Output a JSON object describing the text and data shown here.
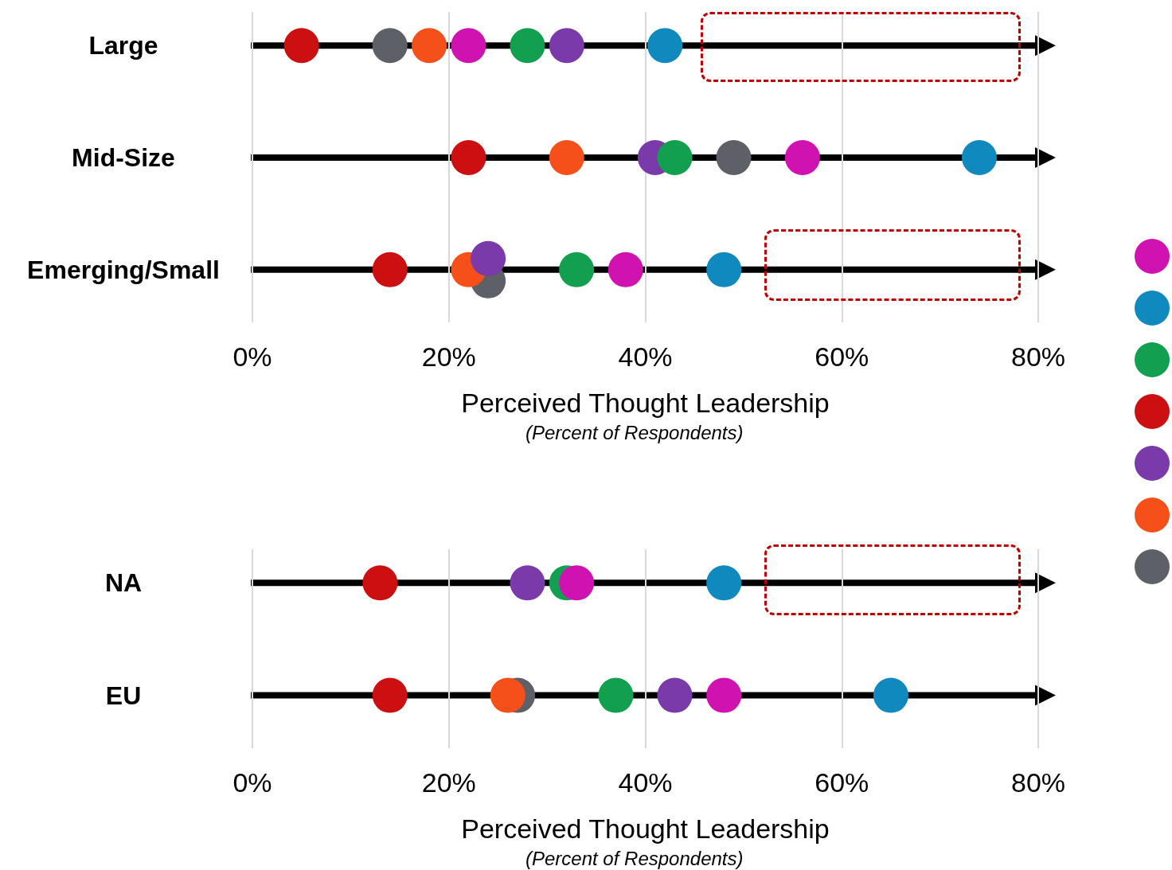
{
  "chart_data": [
    {
      "type": "scatter",
      "categories": [
        "Large",
        "Mid-Size",
        "Emerging/Small"
      ],
      "xlabel": "Perceived Thought Leadership",
      "annotations": [
        "(Percent of Respondents)"
      ],
      "orientation": "horizontal",
      "xlim": [
        0,
        80
      ],
      "xticks": [
        {
          "value": 0,
          "label": "0%"
        },
        {
          "value": 20,
          "label": "20%"
        },
        {
          "value": 40,
          "label": "40%"
        },
        {
          "value": 60,
          "label": "60%"
        },
        {
          "value": 80,
          "label": "80%"
        }
      ],
      "grid": true,
      "marker": "circle",
      "series": [
        {
          "color": "#d012b0",
          "values": [
            22,
            56,
            38
          ]
        },
        {
          "color": "#1089bf",
          "values": [
            42,
            74,
            48
          ]
        },
        {
          "color": "#12a050",
          "values": [
            28,
            43,
            33
          ]
        },
        {
          "color": "#cc0f10",
          "values": [
            5,
            22,
            14
          ]
        },
        {
          "color": "#7a3aaa",
          "values": [
            32,
            41,
            24
          ]
        },
        {
          "color": "#f5501a",
          "values": [
            18,
            32,
            22
          ]
        },
        {
          "color": "#5d6066",
          "values": [
            14,
            49,
            24
          ]
        }
      ]
    },
    {
      "type": "scatter",
      "categories": [
        "NA",
        "EU"
      ],
      "xlabel": "Perceived Thought Leadership",
      "annotations": [
        "(Percent of Respondents)"
      ],
      "orientation": "horizontal",
      "xlim": [
        0,
        80
      ],
      "xticks": [
        {
          "value": 0,
          "label": "0%"
        },
        {
          "value": 20,
          "label": "20%"
        },
        {
          "value": 40,
          "label": "40%"
        },
        {
          "value": 60,
          "label": "60%"
        },
        {
          "value": 80,
          "label": "80%"
        }
      ],
      "grid": true,
      "marker": "circle",
      "series": [
        {
          "color": "#d012b0",
          "values": [
            33,
            48
          ]
        },
        {
          "color": "#1089bf",
          "values": [
            48,
            65
          ]
        },
        {
          "color": "#12a050",
          "values": [
            32,
            37
          ]
        },
        {
          "color": "#cc0f10",
          "values": [
            13,
            14
          ]
        },
        {
          "color": "#7a3aaa",
          "values": [
            28,
            43
          ]
        },
        {
          "color": "#f5501a",
          "values": [
            null,
            26
          ]
        },
        {
          "color": "#5d6066",
          "values": [
            null,
            27
          ]
        }
      ]
    }
  ]
}
